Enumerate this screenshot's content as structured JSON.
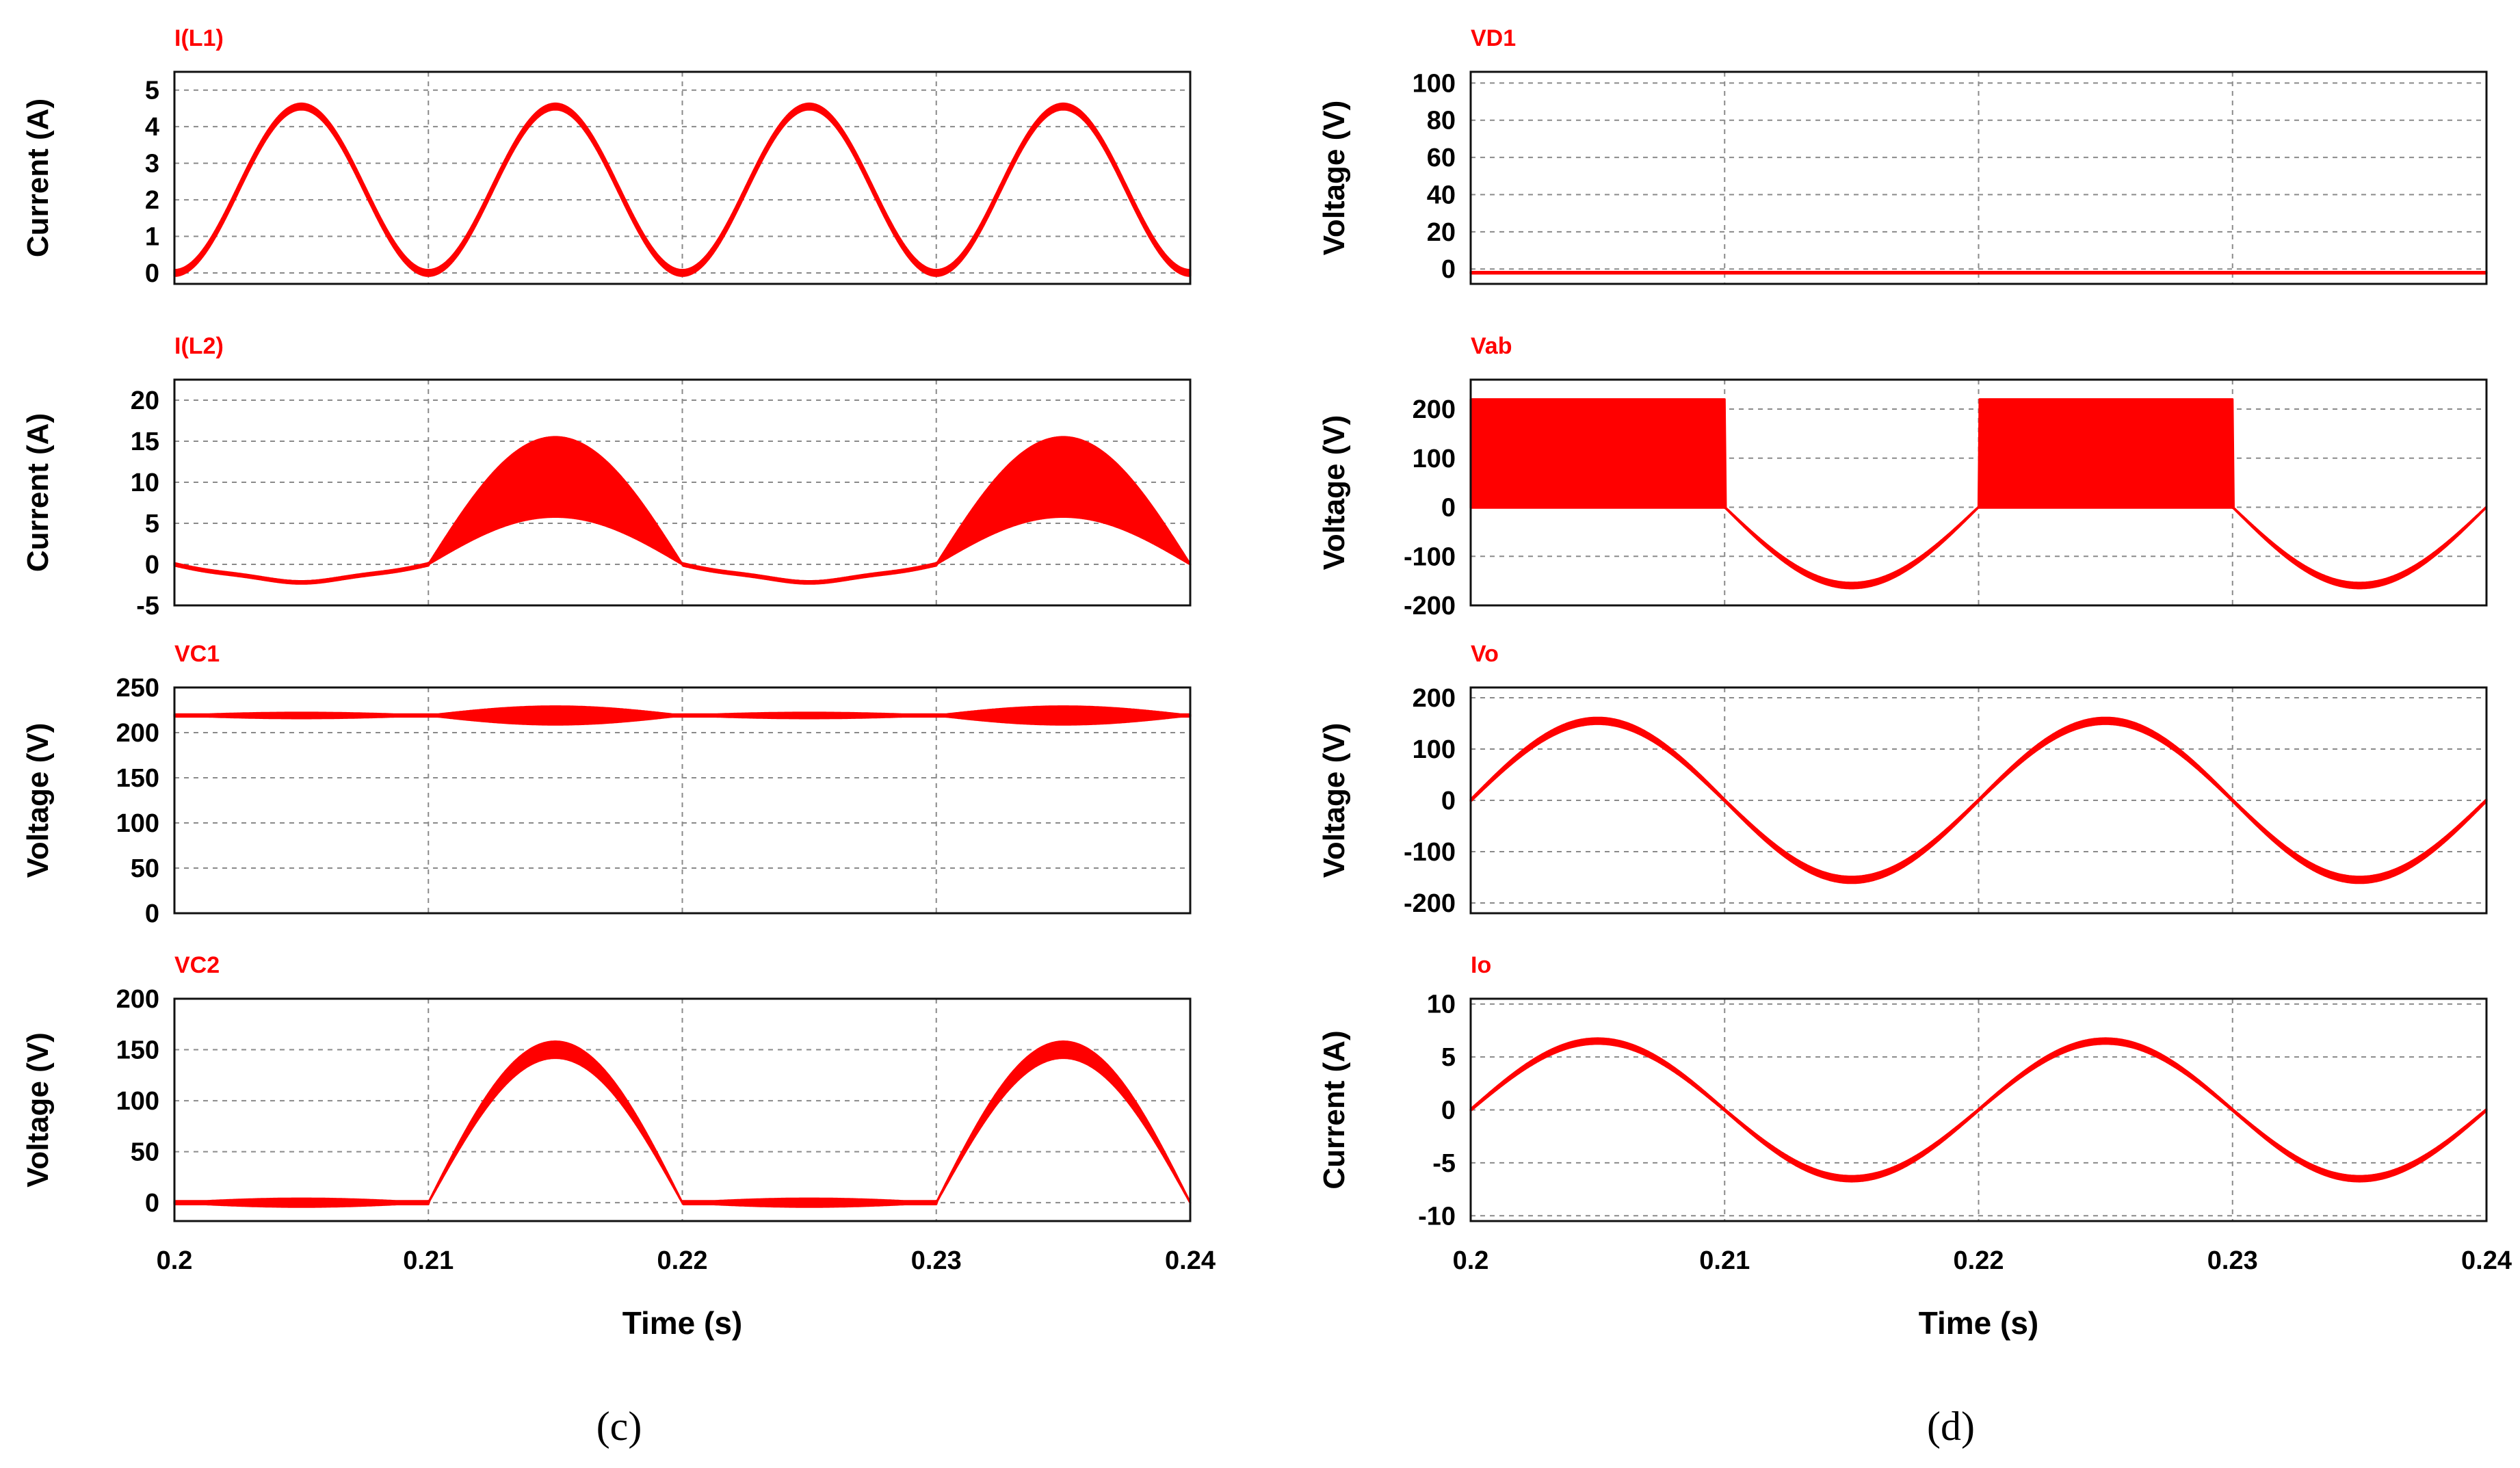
{
  "trace_color": "#ff0000",
  "captions": [
    "(c)",
    "(d)"
  ],
  "chart_data": [
    {
      "column": "c",
      "x_ticks": [
        "0.2",
        "0.21",
        "0.22",
        "0.23",
        "0.24"
      ],
      "xlabel": "Time (s)",
      "panels": [
        {
          "type": "line",
          "title": "I(L1)",
          "ylabel": "Current (A)",
          "ylim": [
            -0.3,
            5.5
          ],
          "yticks": [
            "0",
            "1",
            "2",
            "3",
            "4",
            "5"
          ],
          "ytick_values": [
            0,
            1,
            2,
            3,
            4,
            5
          ],
          "series": [
            {
              "name": "I(L1)",
              "kind": "sin2",
              "peak": 4.55,
              "period": 0.01,
              "band": 0.08,
              "phase": 0
            }
          ]
        },
        {
          "type": "line",
          "title": "I(L2)",
          "ylabel": "Current (A)",
          "ylim": [
            -5,
            22.5
          ],
          "yticks": [
            "20",
            "15",
            "10",
            "5",
            "0",
            "-5"
          ],
          "ytick_values": [
            20,
            15,
            10,
            5,
            0,
            -5
          ],
          "series": [
            {
              "name": "I(L2)",
              "kind": "il2",
              "envelope_upper_peak": 15.5,
              "envelope_lower_peak": 5.8,
              "negative_dip": -2.2
            }
          ]
        },
        {
          "type": "line",
          "title": "VC1",
          "ylabel": "Voltage (V)",
          "ylim": [
            0,
            250
          ],
          "yticks": [
            "250",
            "200",
            "150",
            "100",
            "50",
            "0"
          ],
          "ytick_values": [
            250,
            200,
            150,
            100,
            50,
            0
          ],
          "series": [
            {
              "name": "VC1",
              "kind": "vc1",
              "mean": 219,
              "ripple_small": 3,
              "ripple_large": 10
            }
          ]
        },
        {
          "type": "line",
          "title": "VC2",
          "ylabel": "Voltage (V)",
          "ylim": [
            -18,
            200
          ],
          "yticks": [
            "200",
            "150",
            "100",
            "50",
            "0"
          ],
          "ytick_values": [
            200,
            150,
            100,
            50,
            0
          ],
          "series": [
            {
              "name": "VC2",
              "kind": "vc2",
              "envelope_upper_peak": 158,
              "envelope_lower_peak": 142,
              "flat_ripple": 4
            }
          ]
        }
      ]
    },
    {
      "column": "d",
      "x_ticks": [
        "0.2",
        "0.21",
        "0.22",
        "0.23",
        "0.24"
      ],
      "xlabel": "Time (s)",
      "panels": [
        {
          "type": "line",
          "title": "VD1",
          "ylabel": "Voltage (V)",
          "ylim": [
            -8,
            106
          ],
          "yticks": [
            "100",
            "80",
            "60",
            "40",
            "20",
            "0"
          ],
          "ytick_values": [
            100,
            80,
            60,
            40,
            20,
            0
          ],
          "series": [
            {
              "name": "VD1",
              "kind": "const",
              "value": -2
            }
          ]
        },
        {
          "type": "line",
          "title": "Vab",
          "ylabel": "Voltage (V)",
          "ylim": [
            -200,
            260
          ],
          "yticks": [
            "200",
            "100",
            "0",
            "-100",
            "-200"
          ],
          "ytick_values": [
            200,
            100,
            0,
            -100,
            -200
          ],
          "series": [
            {
              "name": "Vab",
              "kind": "vab",
              "pulse_high": 220,
              "pulse_low": 0,
              "negative_peak": -155
            }
          ]
        },
        {
          "type": "line",
          "title": "Vo",
          "ylabel": "Voltage (V)",
          "ylim": [
            -220,
            220
          ],
          "yticks": [
            "200",
            "100",
            "0",
            "-100",
            "-200"
          ],
          "ytick_values": [
            200,
            100,
            0,
            -100,
            -200
          ],
          "series": [
            {
              "name": "Vo",
              "kind": "sine",
              "amplitude": 155,
              "period": 0.02,
              "band": 6
            }
          ]
        },
        {
          "type": "line",
          "title": "Io",
          "ylabel": "Current (A)",
          "ylim": [
            -10.5,
            10.5
          ],
          "yticks": [
            "10",
            "5",
            "0",
            "-5",
            "-10"
          ],
          "ytick_values": [
            10,
            5,
            0,
            -5,
            -10
          ],
          "series": [
            {
              "name": "Io",
              "kind": "sine",
              "amplitude": 6.5,
              "period": 0.02,
              "band": 0.25
            }
          ]
        }
      ]
    }
  ]
}
